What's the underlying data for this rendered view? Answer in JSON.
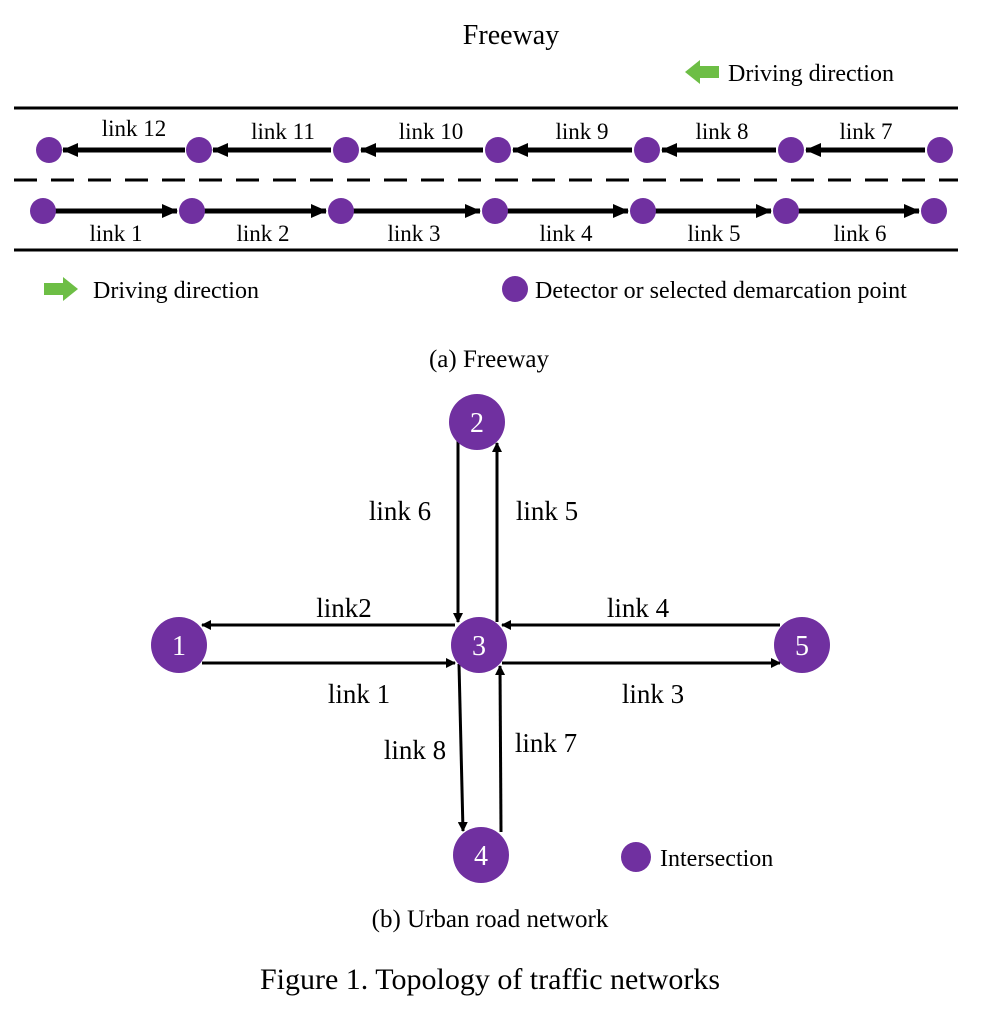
{
  "colors": {
    "node": "#7030A0",
    "arrow_green": "#6DBE45",
    "line": "#000000",
    "node_text": "#ffffff"
  },
  "icons": {
    "direction_right": "green-right-arrow-icon",
    "direction_left": "green-left-arrow-icon",
    "marker": "purple-circle-icon"
  },
  "freeway": {
    "title": "Freeway",
    "top_legend": "Driving direction",
    "lane_upper_links": [
      "link 12",
      "link 11",
      "link 10",
      "link 9",
      "link 8",
      "link 7"
    ],
    "lane_lower_links": [
      "link 1",
      "link 2",
      "link 3",
      "link 4",
      "link 5",
      "link 6"
    ],
    "legend_direction": "Driving direction",
    "legend_detector": "Detector or selected demarcation point",
    "caption": "(a) Freeway"
  },
  "urban": {
    "nodes": [
      "1",
      "2",
      "3",
      "4",
      "5"
    ],
    "links": {
      "l1": "link 1",
      "l2": "link2",
      "l3": "link 3",
      "l4": "link 4",
      "l5": "link 5",
      "l6": "link 6",
      "l7": "link 7",
      "l8": "link 8"
    },
    "legend_intersection": "Intersection",
    "caption": "(b) Urban road network"
  },
  "figure_caption": "Figure 1. Topology of traffic networks"
}
